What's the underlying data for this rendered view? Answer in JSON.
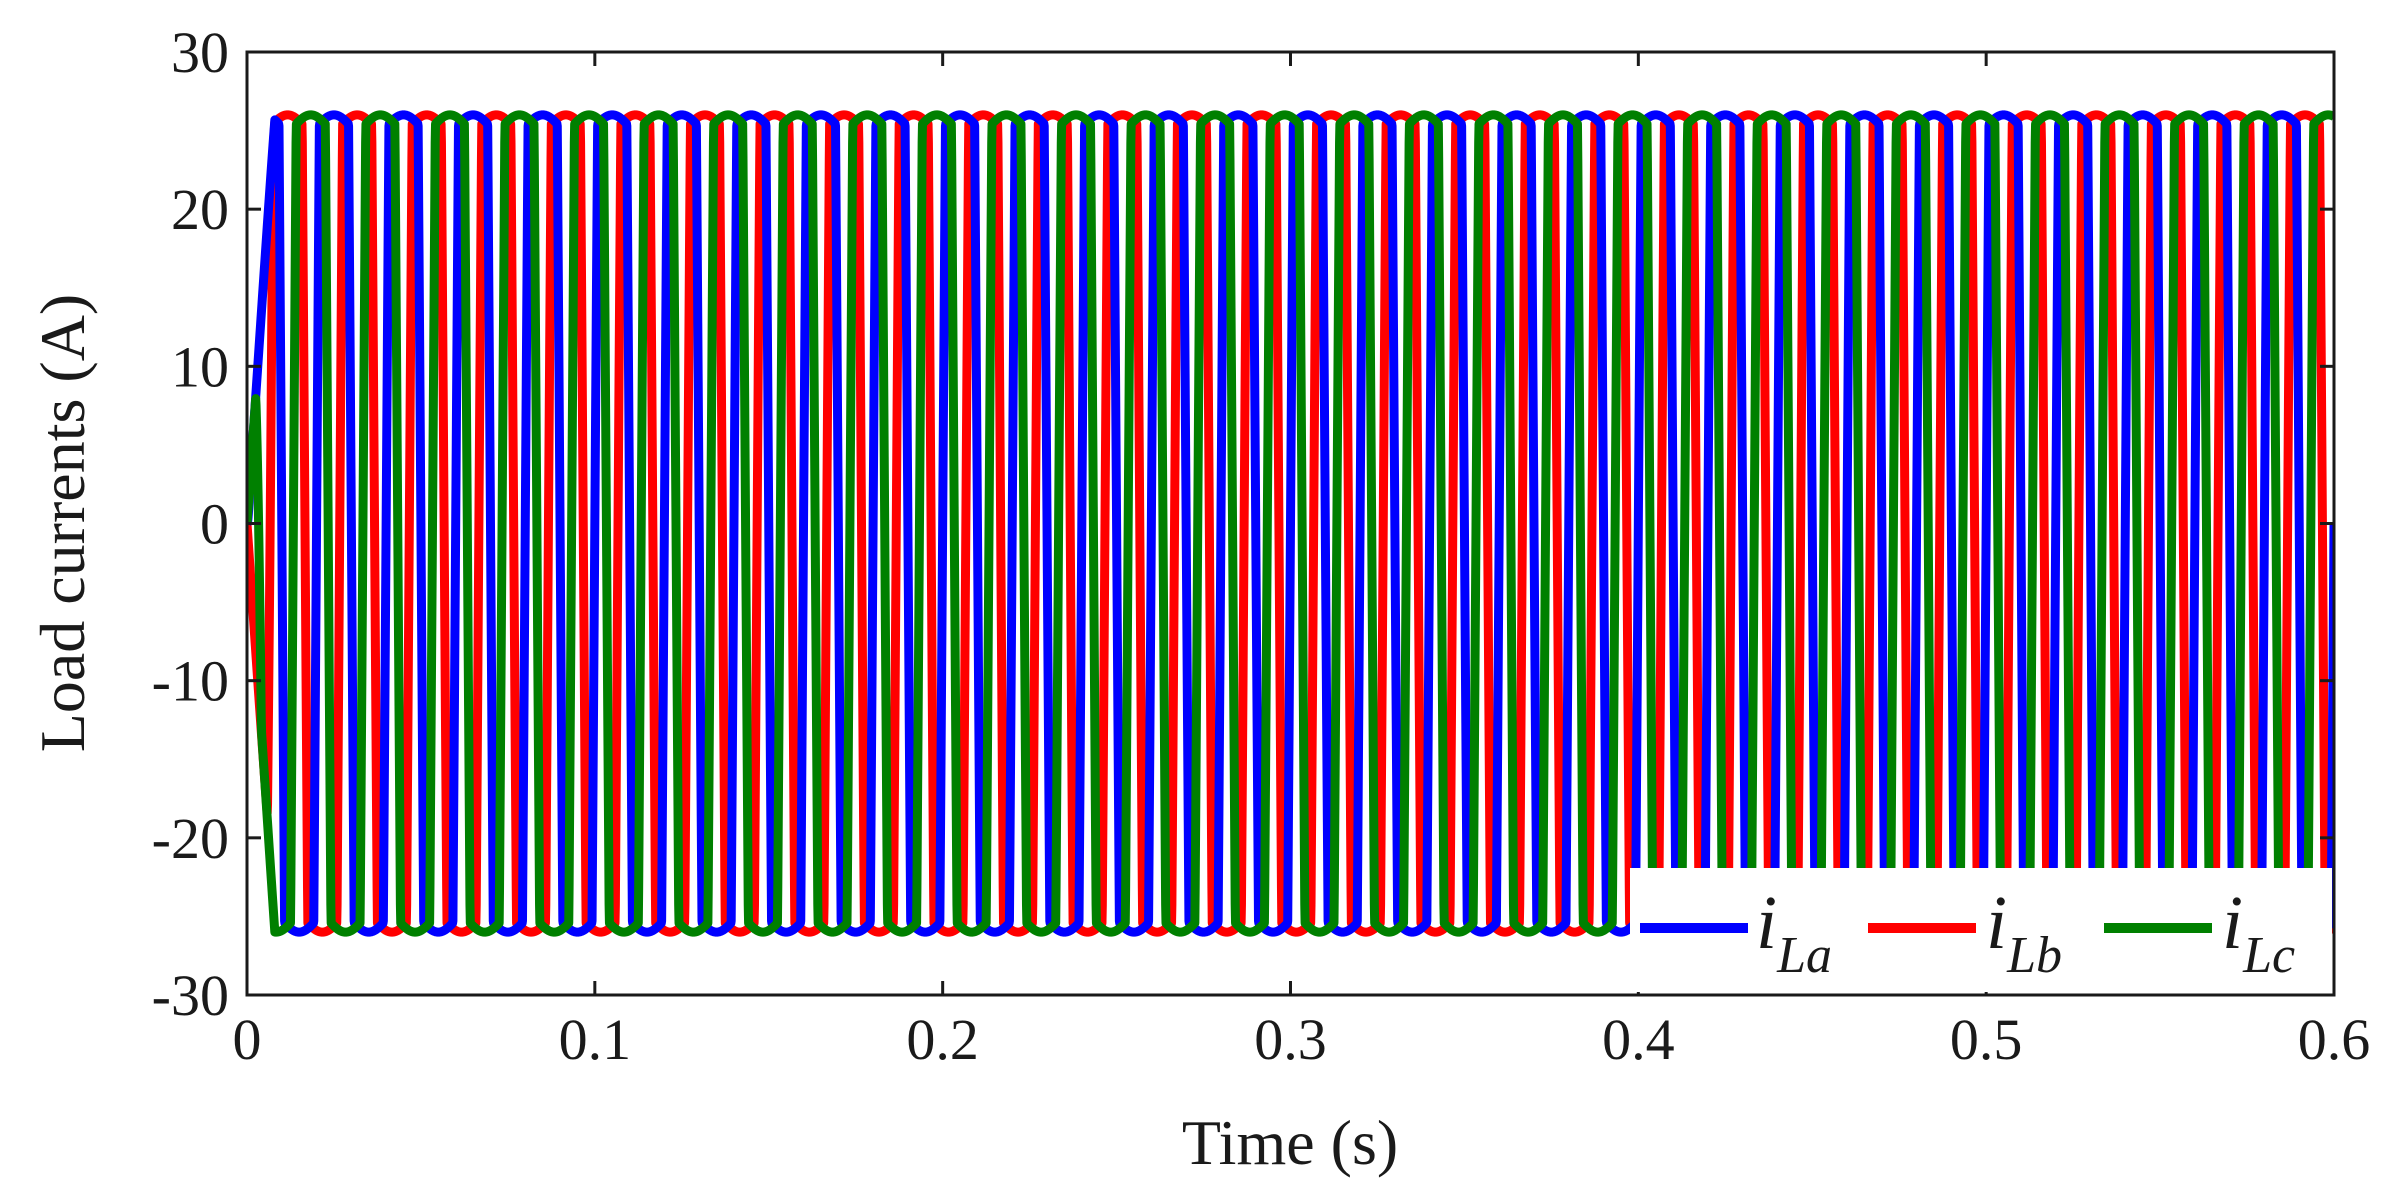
{
  "chart_data": {
    "type": "line",
    "xlabel": "Time (s)",
    "ylabel": "Load currents (A)",
    "xlim": [
      0,
      0.6
    ],
    "ylim": [
      -30,
      30
    ],
    "x_ticks": [
      "0",
      "0.1",
      "0.2",
      "0.3",
      "0.4",
      "0.5",
      "0.6"
    ],
    "y_ticks": [
      "30",
      "20",
      "10",
      "0",
      "-10",
      "-20",
      "-30"
    ],
    "grid": false,
    "legend_position": "bottom-right",
    "frequency_hz": 50,
    "waveform": "three-phase square-like load currents, amplitude ~26 A",
    "series": [
      {
        "name_main": "i",
        "name_sub": "La",
        "color": "#0000ff",
        "amplitude": 26,
        "phase_deg": 0
      },
      {
        "name_main": "i",
        "name_sub": "Lb",
        "color": "#ff0000",
        "amplitude": 26,
        "phase_deg": -120
      },
      {
        "name_main": "i",
        "name_sub": "Lc",
        "color": "#008000",
        "amplitude": 26,
        "phase_deg": 120
      }
    ]
  }
}
